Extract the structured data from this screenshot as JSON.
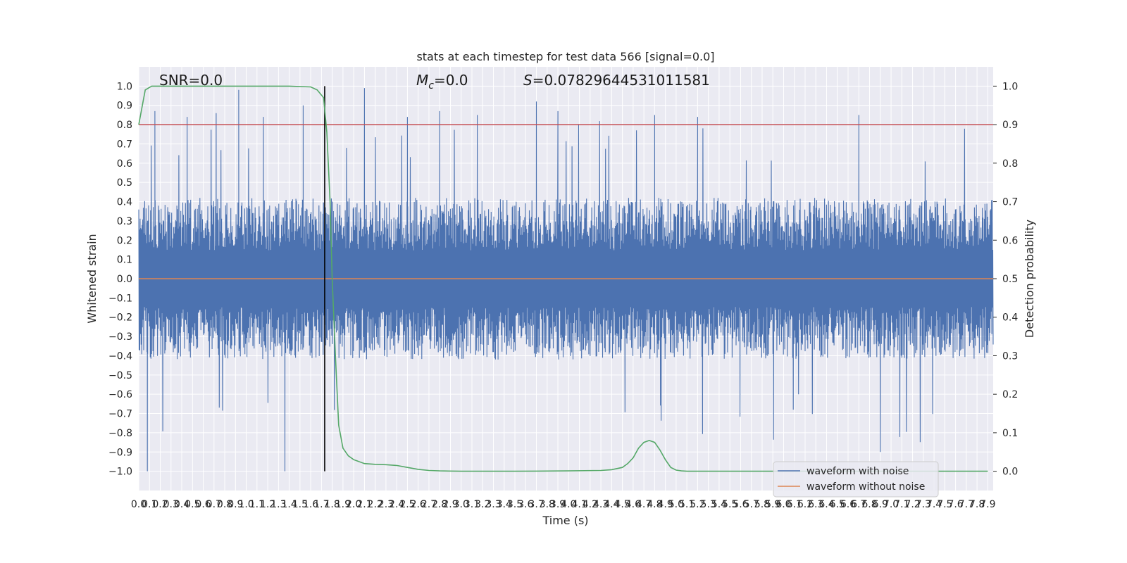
{
  "chart_data": {
    "type": "line",
    "title": "stats at each timestep for test data 566 [signal=0.0]",
    "xlabel": "Time (s)",
    "ylabel": "Whitened strain",
    "y2label": "Detection probability",
    "xlim": [
      0.0,
      7.95
    ],
    "ylim": [
      -1.1,
      1.1
    ],
    "y2lim": [
      -0.05,
      1.05
    ],
    "grid": true,
    "legend_placement": "lower-right",
    "x_ticks": [
      "0.0",
      "0.1",
      "0.2",
      "0.3",
      "0.4",
      "0.5",
      "0.6",
      "0.7",
      "0.8",
      "0.9",
      "1.0",
      "1.1",
      "1.2",
      "1.3",
      "1.4",
      "1.5",
      "1.6",
      "1.7",
      "1.8",
      "1.9",
      "2.0",
      "2.1",
      "2.2",
      "2.3",
      "2.4",
      "2.5",
      "2.6",
      "2.7",
      "2.8",
      "2.9",
      "3.0",
      "3.1",
      "3.2",
      "3.3",
      "3.4",
      "3.5",
      "3.6",
      "3.7",
      "3.8",
      "3.9",
      "4.0",
      "4.1",
      "4.2",
      "4.3",
      "4.4",
      "4.5",
      "4.6",
      "4.7",
      "4.8",
      "4.9",
      "5.0",
      "5.1",
      "5.2",
      "5.3",
      "5.4",
      "5.5",
      "5.6",
      "5.7",
      "5.8",
      "5.9",
      "6.0",
      "6.1",
      "6.2",
      "6.3",
      "6.4",
      "6.5",
      "6.6",
      "6.7",
      "6.8",
      "6.9",
      "7.0",
      "7.1",
      "7.2",
      "7.3",
      "7.4",
      "7.5",
      "7.6",
      "7.7",
      "7.8",
      "7.9"
    ],
    "y_ticks": [
      "−1.0",
      "−0.9",
      "−0.8",
      "−0.7",
      "−0.6",
      "−0.5",
      "−0.4",
      "−0.3",
      "−0.2",
      "−0.1",
      "0.0",
      "0.1",
      "0.2",
      "0.3",
      "0.4",
      "0.5",
      "0.6",
      "0.7",
      "0.8",
      "0.9",
      "1.0"
    ],
    "y2_ticks": [
      "0.0",
      "0.1",
      "0.2",
      "0.3",
      "0.4",
      "0.5",
      "0.6",
      "0.7",
      "0.8",
      "0.9",
      "1.0"
    ],
    "annotations": {
      "snr": "SNR=0.0",
      "mc_symbol": "M",
      "mc_sub": "c",
      "mc_value": "=0.0",
      "s_symbol": "S",
      "s_value": "=0.07829644531011581"
    },
    "series": [
      {
        "name": "waveform with noise",
        "color": "#4c72b0",
        "axis": "left",
        "description": "dense whitened-noise strain, envelope roughly ±0.4 with spikes to ±1.0",
        "notable_peaks": [
          [
            0.08,
            -1.0
          ],
          [
            0.15,
            0.87
          ],
          [
            0.45,
            0.84
          ],
          [
            0.72,
            0.86
          ],
          [
            0.93,
            0.98
          ],
          [
            1.16,
            0.84
          ],
          [
            1.36,
            -1.0
          ],
          [
            1.53,
            0.9
          ],
          [
            2.1,
            0.99
          ],
          [
            2.5,
            0.84
          ],
          [
            2.8,
            0.87
          ],
          [
            3.15,
            0.85
          ],
          [
            3.7,
            0.92
          ],
          [
            3.9,
            0.87
          ],
          [
            4.8,
            0.85
          ],
          [
            5.2,
            0.84
          ],
          [
            6.7,
            0.85
          ],
          [
            6.9,
            -0.9
          ]
        ],
        "envelope_abs": 0.42
      },
      {
        "name": "waveform without noise",
        "color": "#dd8452",
        "axis": "left",
        "x": [
          0.0,
          7.95
        ],
        "y": [
          0.0,
          0.0
        ]
      },
      {
        "color": "#55a868",
        "axis": "right",
        "x": [
          0.0,
          0.06,
          0.12,
          0.3,
          0.6,
          1.0,
          1.4,
          1.6,
          1.66,
          1.72,
          1.75,
          1.78,
          1.8,
          1.83,
          1.86,
          1.9,
          1.95,
          2.0,
          2.1,
          2.2,
          2.3,
          2.4,
          2.5,
          2.6,
          2.7,
          2.8,
          3.0,
          3.5,
          4.0,
          4.3,
          4.4,
          4.5,
          4.55,
          4.6,
          4.65,
          4.7,
          4.75,
          4.8,
          4.85,
          4.9,
          4.95,
          5.0,
          5.05,
          5.1,
          5.2,
          5.5,
          6.0,
          6.5,
          7.0,
          7.5,
          7.9
        ],
        "y": [
          0.9,
          0.99,
          1.0,
          1.0,
          1.0,
          1.0,
          1.0,
          0.998,
          0.99,
          0.97,
          0.88,
          0.7,
          0.5,
          0.3,
          0.12,
          0.06,
          0.04,
          0.03,
          0.02,
          0.018,
          0.017,
          0.015,
          0.01,
          0.005,
          0.002,
          0.001,
          0.0,
          0.0,
          0.001,
          0.002,
          0.004,
          0.01,
          0.02,
          0.035,
          0.06,
          0.075,
          0.08,
          0.075,
          0.055,
          0.03,
          0.01,
          0.003,
          0.001,
          0.0,
          0.0,
          0.0,
          0.0,
          0.0,
          0.0,
          0.0,
          0.0
        ]
      },
      {
        "color": "#c44e52",
        "axis": "right",
        "type": "threshold",
        "value": 0.9
      },
      {
        "color": "#000000",
        "axis": "left",
        "type": "vertical-marker",
        "x": 1.73,
        "y": [
          -1.0,
          1.0
        ]
      }
    ]
  }
}
